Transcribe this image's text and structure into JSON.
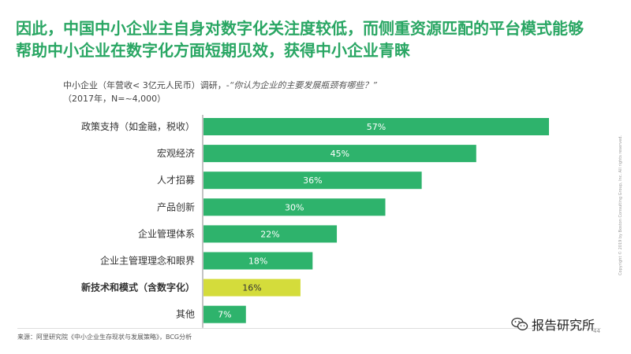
{
  "title_lines": [
    "因此，中国中小企业主自身对数字化关注度较低，而侧重资源匹配的平台模式能够",
    "帮助中小企业在数字化方面短期见效，获得中小企业青睐"
  ],
  "subtitle": {
    "prefix": "中小企业（年营收< 3亿元人民币）调研，-",
    "question": "“你认为企业的主要发展瓶颈有哪些？”",
    "note": "（2017年，N=~4,000）"
  },
  "colors": {
    "title": "#29A663",
    "bar": "#2EB36C",
    "highlight_bar": "#D4DC3B",
    "bar_label": "#ffffff",
    "highlight_label": "#333333"
  },
  "chart_data": {
    "type": "bar",
    "orientation": "horizontal",
    "categories": [
      "政策支持（如金融，税收）",
      "宏观经济",
      "人才招募",
      "产品创新",
      "企业管理体系",
      "企业主管理理念和眼界",
      "新技术和模式（含数字化）",
      "其他"
    ],
    "values": [
      57,
      45,
      36,
      30,
      22,
      18,
      16,
      7
    ],
    "value_labels": [
      "57%",
      "45%",
      "36%",
      "30%",
      "22%",
      "18%",
      "16%",
      "7%"
    ],
    "highlight_index": 6,
    "xlim": [
      0,
      57
    ],
    "grid": false
  },
  "source": "来源：阿里研究院《中小企业生存现状与发展策略》，BCG分析",
  "watermark": "报告研究所",
  "page_number": "44",
  "copyright": "Copyright © 2019 by Boston Consulting Group, Inc. All rights reserved."
}
